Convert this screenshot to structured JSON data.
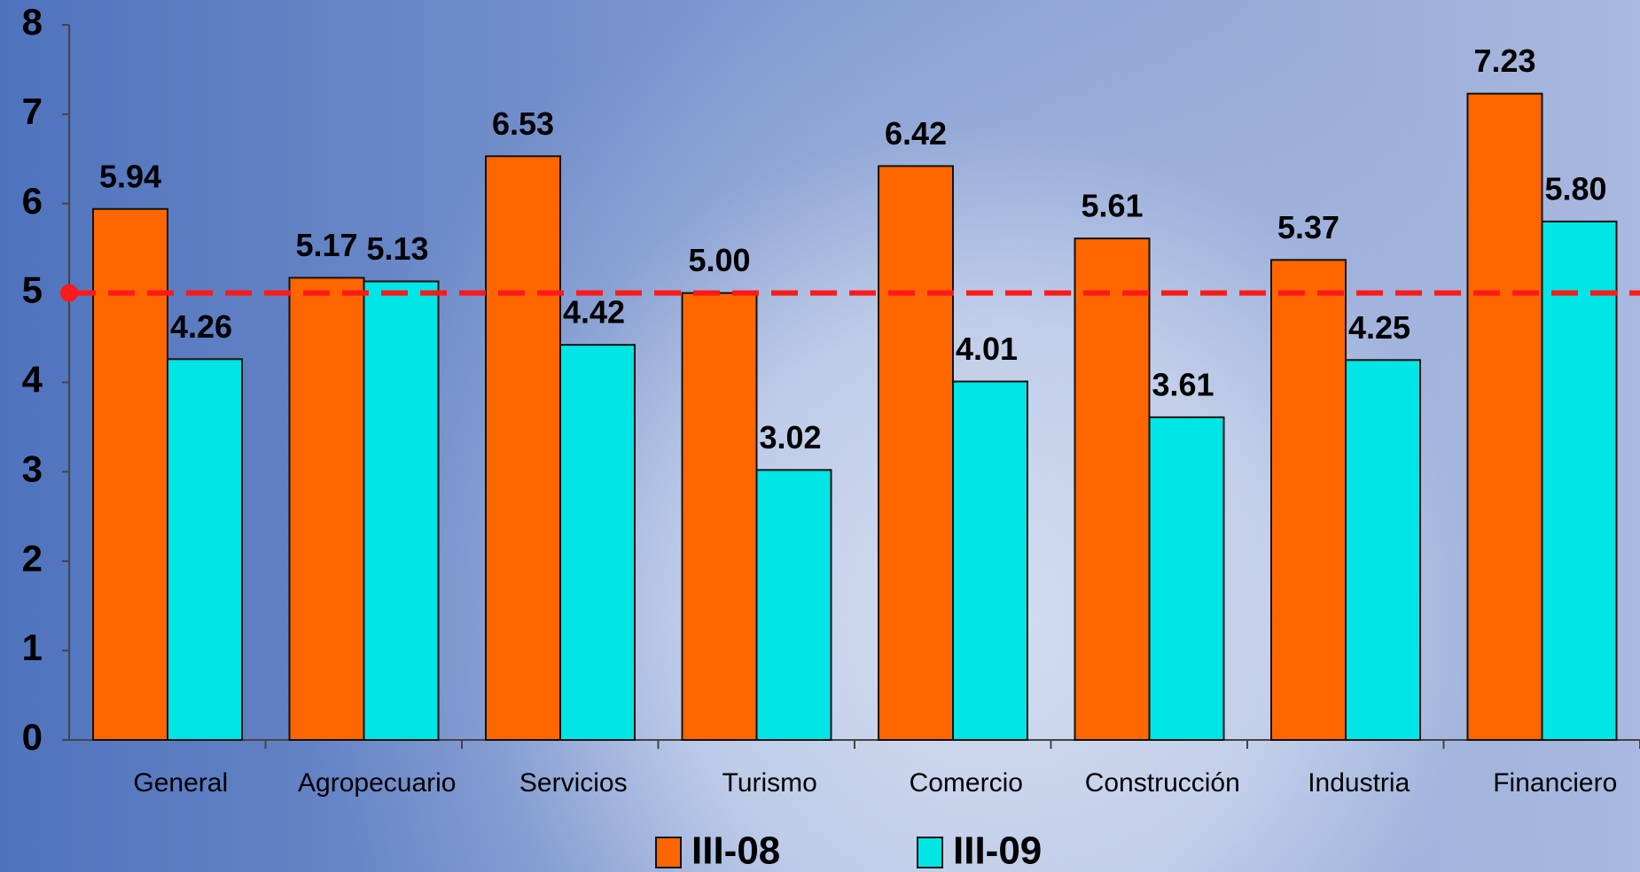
{
  "chart_data": {
    "type": "bar",
    "categories": [
      "General",
      "Agropecuario",
      "Servicios",
      "Turismo",
      "Comercio",
      "Construcción",
      "Industria",
      "Financiero"
    ],
    "series": [
      {
        "name": "III-08",
        "color": "#ff6600",
        "values": [
          5.94,
          5.17,
          6.53,
          5.0,
          6.42,
          5.61,
          5.37,
          7.23
        ],
        "value_labels": [
          "5.94",
          "5.17",
          "6.53",
          "5.00",
          "6.42",
          "5.61",
          "5.37",
          "7.23"
        ]
      },
      {
        "name": "III-09",
        "color": "#00e5e5",
        "values": [
          4.26,
          5.13,
          4.42,
          3.02,
          4.01,
          3.61,
          4.25,
          5.8
        ],
        "value_labels": [
          "4.26",
          "5.13",
          "4.42",
          "3.02",
          "4.01",
          "3.61",
          "4.25",
          "5.80"
        ]
      }
    ],
    "ylim": [
      0,
      8
    ],
    "yticks": [
      0,
      1,
      2,
      3,
      4,
      5,
      6,
      7,
      8
    ],
    "reference_line": {
      "value": 5,
      "color": "#ff1a1a"
    },
    "legend": "bottom"
  }
}
